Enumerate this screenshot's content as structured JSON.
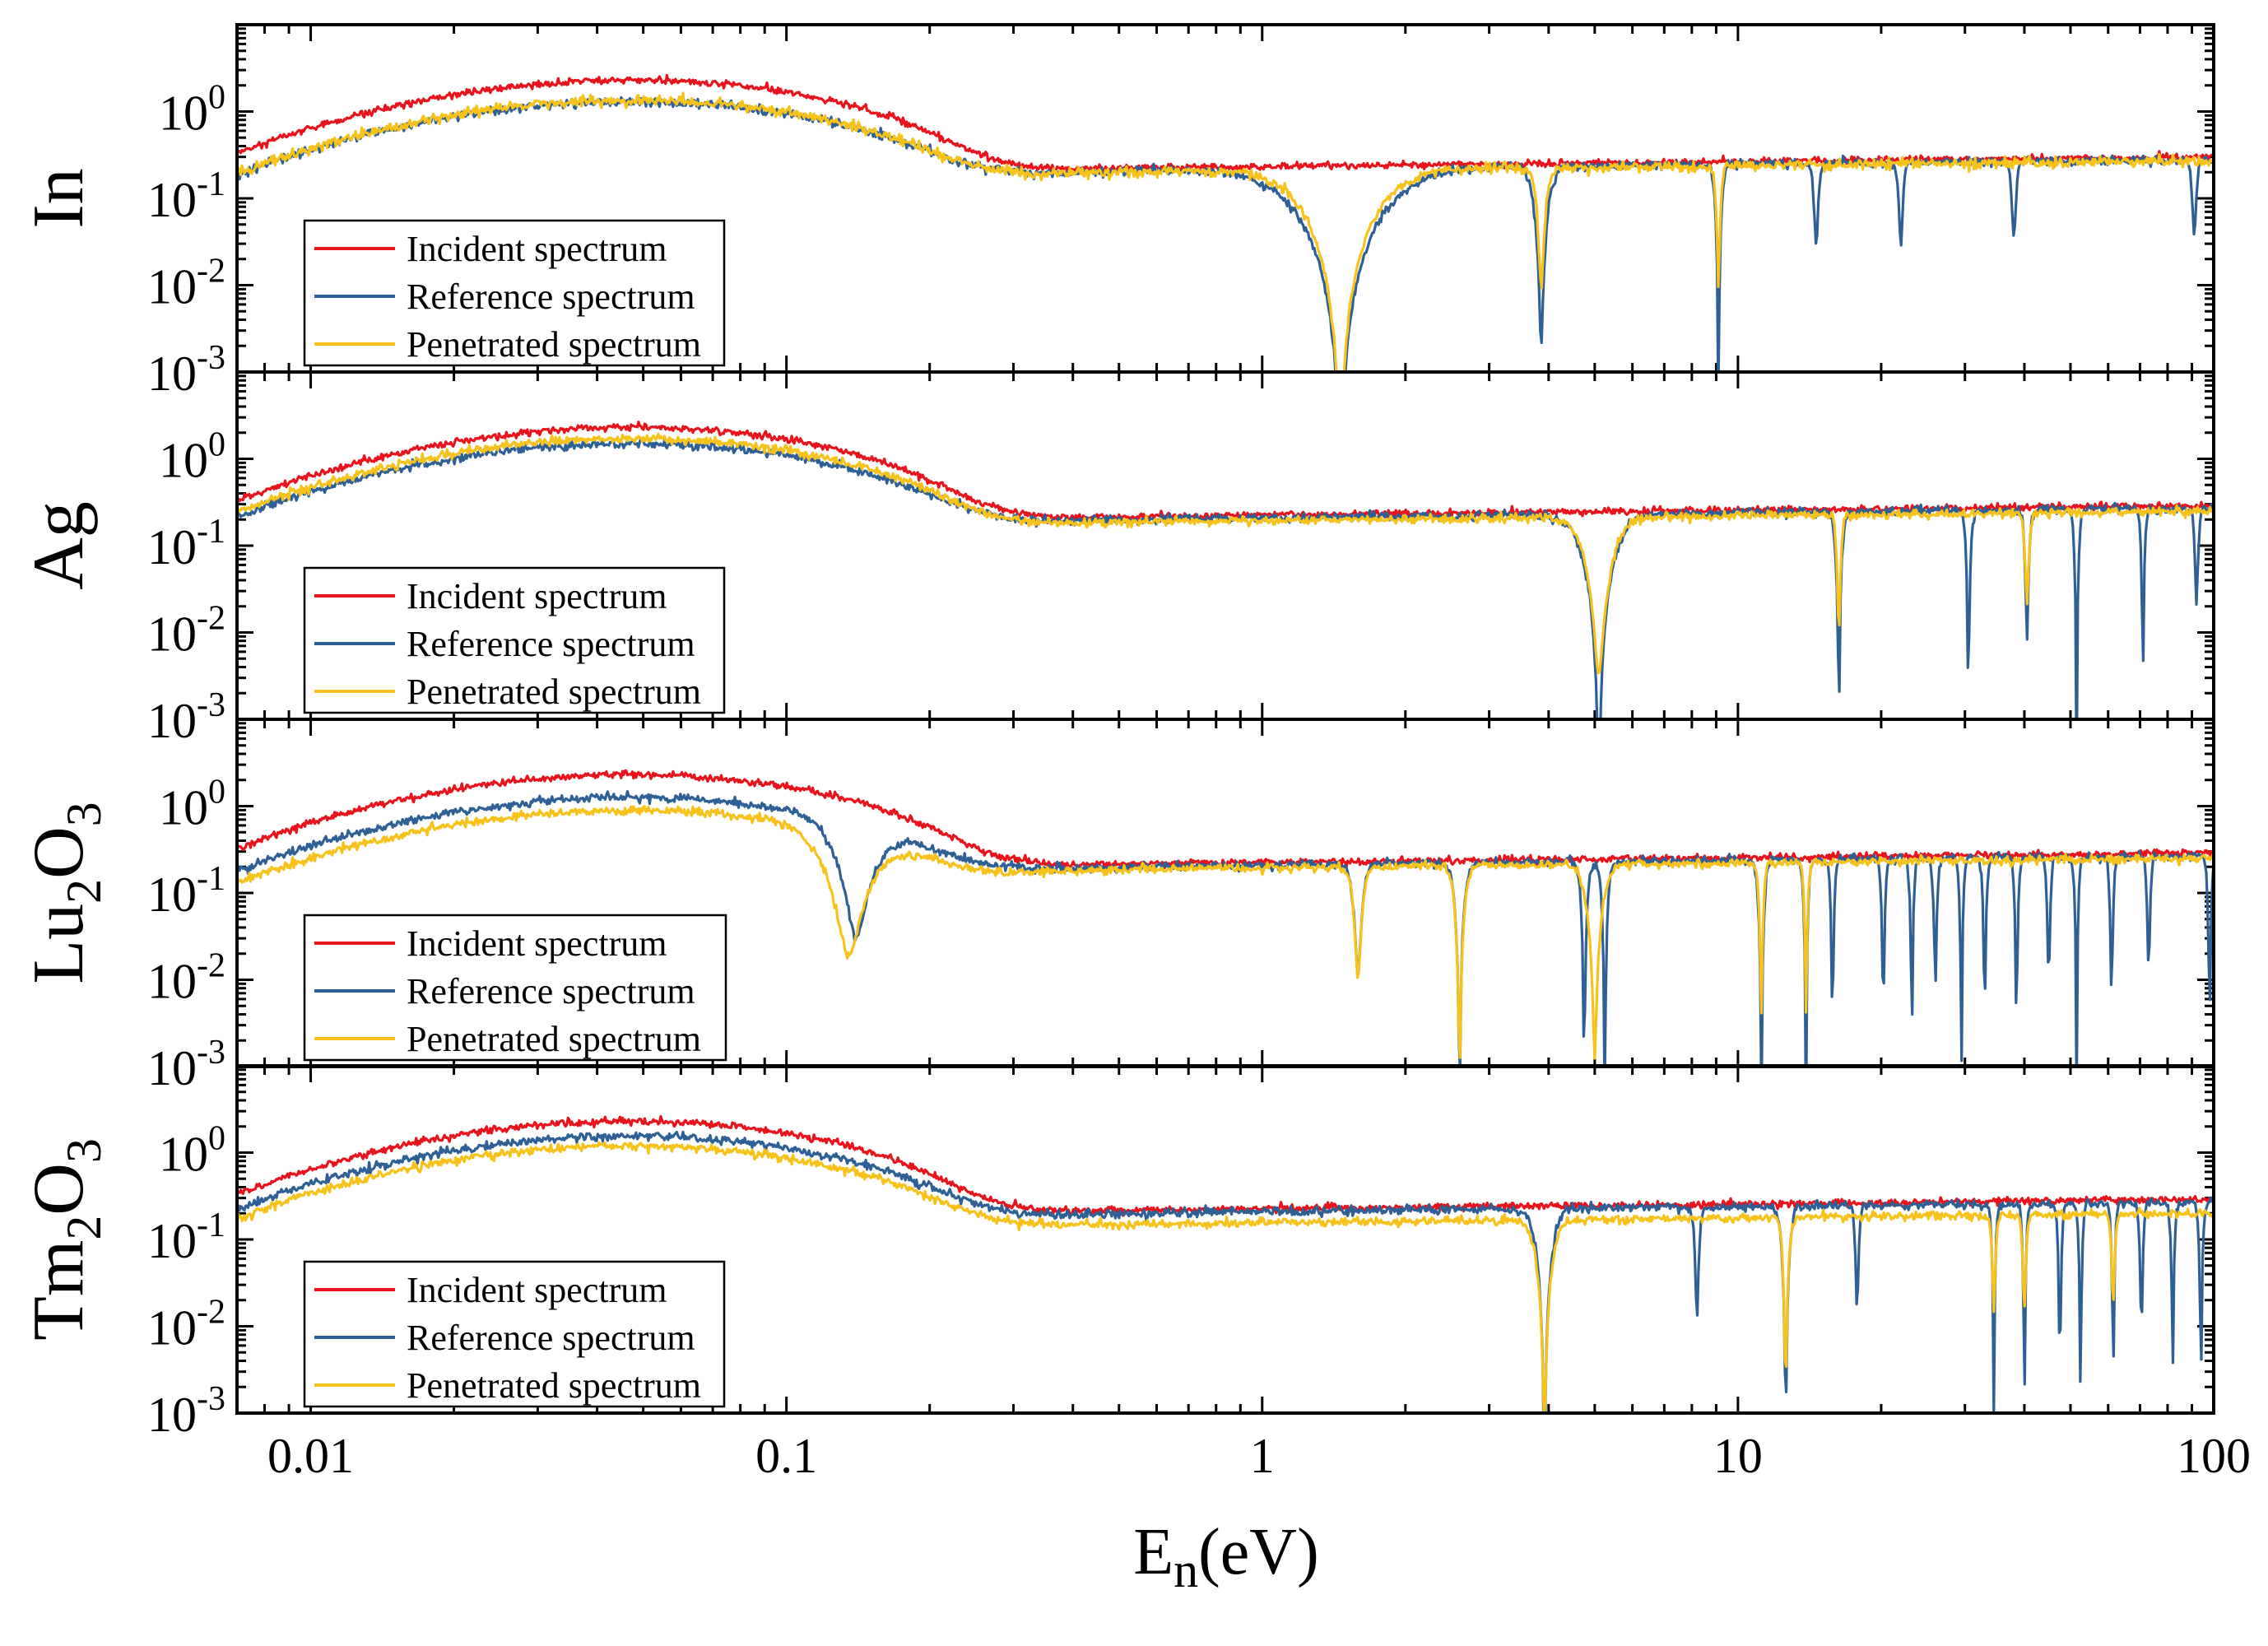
{
  "chart_data": {
    "type": "line",
    "layout": "4 stacked panels sharing x-axis",
    "xscale": "log",
    "yscale": "log",
    "xlim": [
      0.007,
      100
    ],
    "ylim": [
      0.001,
      10
    ],
    "xlabel_main": "E",
    "xlabel_sub": "n",
    "xlabel_tail": "(eV)",
    "xticks": [
      {
        "v": 0.01,
        "label": "0.01"
      },
      {
        "v": 0.1,
        "label": "0.1"
      },
      {
        "v": 1,
        "label": "1"
      },
      {
        "v": 10,
        "label": "10"
      },
      {
        "v": 100,
        "label": "100"
      }
    ],
    "yticks": [
      {
        "v": 1,
        "base": "10",
        "exp": "0"
      },
      {
        "v": 0.1,
        "base": "10",
        "exp": "-1"
      },
      {
        "v": 0.01,
        "base": "10",
        "exp": "-2"
      },
      {
        "v": 0.001,
        "base": "10",
        "exp": "-3"
      }
    ],
    "series_styles": [
      {
        "name": "Incident spectrum",
        "color": "#e8141c"
      },
      {
        "name": "Reference spectrum",
        "color": "#2e6096"
      },
      {
        "name": "Penetrated spectrum",
        "color": "#f7c21b"
      }
    ],
    "panels": [
      {
        "ylabel": {
          "pre": "In",
          "sub1": "",
          "mid": "",
          "sub2": ""
        },
        "legend": [
          "Incident spectrum",
          "Reference spectrum",
          "Penetrated spectrum"
        ],
        "series": [
          {
            "name": "Incident spectrum",
            "peak": 2.3,
            "plateau": 0.17,
            "high": 0.3,
            "noise": 0.04,
            "dips": [],
            "seed": 11
          },
          {
            "name": "Reference spectrum",
            "peak": 1.3,
            "plateau": 0.15,
            "high": 0.28,
            "noise": 0.05,
            "seed": 12,
            "dips": [
              {
                "x": 1.46,
                "w": 0.11,
                "min": 0.0002
              },
              {
                "x": 3.86,
                "w": 0.018,
                "min": 0.008
              },
              {
                "x": 9.1,
                "w": 0.008,
                "min": 0.0012
              },
              {
                "x": 14.6,
                "w": 0.006,
                "min": 0.12
              },
              {
                "x": 22,
                "w": 0.006,
                "min": 0.11
              },
              {
                "x": 38,
                "w": 0.006,
                "min": 0.13
              },
              {
                "x": 91,
                "w": 0.006,
                "min": 0.15
              }
            ]
          },
          {
            "name": "Penetrated spectrum",
            "peak": 1.35,
            "plateau": 0.15,
            "high": 0.27,
            "noise": 0.06,
            "seed": 13,
            "dips": [
              {
                "x": 1.46,
                "w": 0.09,
                "min": 0.0005
              },
              {
                "x": 3.86,
                "w": 0.012,
                "min": 0.04
              },
              {
                "x": 9.1,
                "w": 0.006,
                "min": 0.04
              }
            ]
          }
        ]
      },
      {
        "ylabel": {
          "pre": "Ag",
          "sub1": "",
          "mid": "",
          "sub2": ""
        },
        "legend": [
          "Incident spectrum",
          "Reference spectrum",
          "Penetrated spectrum"
        ],
        "series": [
          {
            "name": "Incident spectrum",
            "peak": 2.3,
            "plateau": 0.17,
            "high": 0.29,
            "noise": 0.04,
            "dips": [],
            "seed": 21
          },
          {
            "name": "Reference spectrum",
            "peak": 1.5,
            "plateau": 0.16,
            "high": 0.27,
            "noise": 0.05,
            "seed": 22,
            "dips": [
              {
                "x": 5.1,
                "w": 0.04,
                "min": 0.0004
              },
              {
                "x": 16.3,
                "w": 0.008,
                "min": 0.0008
              },
              {
                "x": 30.5,
                "w": 0.006,
                "min": 0.001
              },
              {
                "x": 40.5,
                "w": 0.006,
                "min": 0.03
              },
              {
                "x": 51.5,
                "w": 0.006,
                "min": 0.0009
              },
              {
                "x": 71,
                "w": 0.005,
                "min": 0.007
              },
              {
                "x": 92,
                "w": 0.005,
                "min": 0.08
              }
            ]
          },
          {
            "name": "Penetrated spectrum",
            "peak": 1.7,
            "plateau": 0.15,
            "high": 0.25,
            "noise": 0.05,
            "seed": 23,
            "dips": [
              {
                "x": 5.1,
                "w": 0.035,
                "min": 0.015
              },
              {
                "x": 16.3,
                "w": 0.006,
                "min": 0.04
              },
              {
                "x": 40.5,
                "w": 0.006,
                "min": 0.1
              }
            ]
          }
        ]
      },
      {
        "ylabel": {
          "pre": "Lu",
          "sub1": "2",
          "mid": "O",
          "sub2": "3"
        },
        "legend": [
          "Incident spectrum",
          "Reference spectrum",
          "Penetrated spectrum"
        ],
        "series": [
          {
            "name": "Incident spectrum",
            "peak": 2.3,
            "plateau": 0.17,
            "high": 0.29,
            "noise": 0.04,
            "dips": [],
            "seed": 31
          },
          {
            "name": "Reference spectrum",
            "peak": 1.25,
            "plateau": 0.17,
            "high": 0.27,
            "noise": 0.05,
            "seed": 32,
            "dips": [
              {
                "x": 0.14,
                "w": 0.05,
                "min": 0.05
              },
              {
                "x": 1.59,
                "w": 0.012,
                "min": 0.05
              },
              {
                "x": 2.6,
                "w": 0.012,
                "min": 0.0008
              },
              {
                "x": 4.75,
                "w": 0.008,
                "min": 0.0012
              },
              {
                "x": 5.25,
                "w": 0.008,
                "min": 0.0008
              },
              {
                "x": 11.2,
                "w": 0.008,
                "min": 0.0008
              },
              {
                "x": 13.9,
                "w": 0.006,
                "min": 0.0009
              },
              {
                "x": 15.8,
                "w": 0.005,
                "min": 0.004
              },
              {
                "x": 20.2,
                "w": 0.005,
                "min": 0.004
              },
              {
                "x": 23.2,
                "w": 0.005,
                "min": 0.0009
              },
              {
                "x": 26,
                "w": 0.005,
                "min": 0.03
              },
              {
                "x": 29.5,
                "w": 0.005,
                "min": 0.0008
              },
              {
                "x": 33,
                "w": 0.005,
                "min": 0.01
              },
              {
                "x": 38.5,
                "w": 0.005,
                "min": 0.003
              },
              {
                "x": 45,
                "w": 0.005,
                "min": 0.03
              },
              {
                "x": 51.5,
                "w": 0.005,
                "min": 0.002
              },
              {
                "x": 61,
                "w": 0.005,
                "min": 0.02
              },
              {
                "x": 73,
                "w": 0.005,
                "min": 0.05
              },
              {
                "x": 98,
                "w": 0.005,
                "min": 0.002
              }
            ]
          },
          {
            "name": "Penetrated spectrum",
            "peak": 0.9,
            "plateau": 0.15,
            "high": 0.25,
            "noise": 0.05,
            "seed": 33,
            "dips": [
              {
                "x": 0.135,
                "w": 0.06,
                "min": 0.04
              },
              {
                "x": 1.59,
                "w": 0.012,
                "min": 0.05
              },
              {
                "x": 2.6,
                "w": 0.012,
                "min": 0.003
              },
              {
                "x": 5.0,
                "w": 0.02,
                "min": 0.006
              },
              {
                "x": 11.2,
                "w": 0.006,
                "min": 0.015
              },
              {
                "x": 13.9,
                "w": 0.005,
                "min": 0.02
              }
            ]
          }
        ]
      },
      {
        "ylabel": {
          "pre": "Tm",
          "sub1": "2",
          "mid": "O",
          "sub2": "3"
        },
        "legend": [
          "Incident spectrum",
          "Reference spectrum",
          "Penetrated spectrum"
        ],
        "series": [
          {
            "name": "Incident spectrum",
            "peak": 2.3,
            "plateau": 0.17,
            "high": 0.29,
            "noise": 0.04,
            "dips": [],
            "seed": 41
          },
          {
            "name": "Reference spectrum",
            "peak": 1.55,
            "plateau": 0.16,
            "high": 0.27,
            "noise": 0.05,
            "seed": 42,
            "dips": [
              {
                "x": 3.92,
                "w": 0.02,
                "min": 0.0005
              },
              {
                "x": 8.2,
                "w": 0.006,
                "min": 0.05
              },
              {
                "x": 12.6,
                "w": 0.01,
                "min": 0.0008
              },
              {
                "x": 17.8,
                "w": 0.005,
                "min": 0.06
              },
              {
                "x": 34.5,
                "w": 0.005,
                "min": 0.004
              },
              {
                "x": 40,
                "w": 0.005,
                "min": 0.0009
              },
              {
                "x": 47.5,
                "w": 0.005,
                "min": 0.0009
              },
              {
                "x": 52.5,
                "w": 0.005,
                "min": 0.0009
              },
              {
                "x": 61.5,
                "w": 0.005,
                "min": 0.004
              },
              {
                "x": 70.5,
                "w": 0.005,
                "min": 0.03
              },
              {
                "x": 82,
                "w": 0.005,
                "min": 0.01
              },
              {
                "x": 94,
                "w": 0.005,
                "min": 0.0009
              }
            ]
          },
          {
            "name": "Penetrated spectrum",
            "peak": 1.2,
            "plateau": 0.15,
            "high": 0.2,
            "noise": 0.05,
            "seed": 43,
            "dips": [
              {
                "x": 3.92,
                "w": 0.02,
                "min": 0.004
              },
              {
                "x": 12.6,
                "w": 0.008,
                "min": 0.01
              },
              {
                "x": 34.5,
                "w": 0.005,
                "min": 0.08
              },
              {
                "x": 40,
                "w": 0.005,
                "min": 0.07
              },
              {
                "x": 61.5,
                "w": 0.005,
                "min": 0.08
              }
            ]
          }
        ]
      }
    ]
  }
}
